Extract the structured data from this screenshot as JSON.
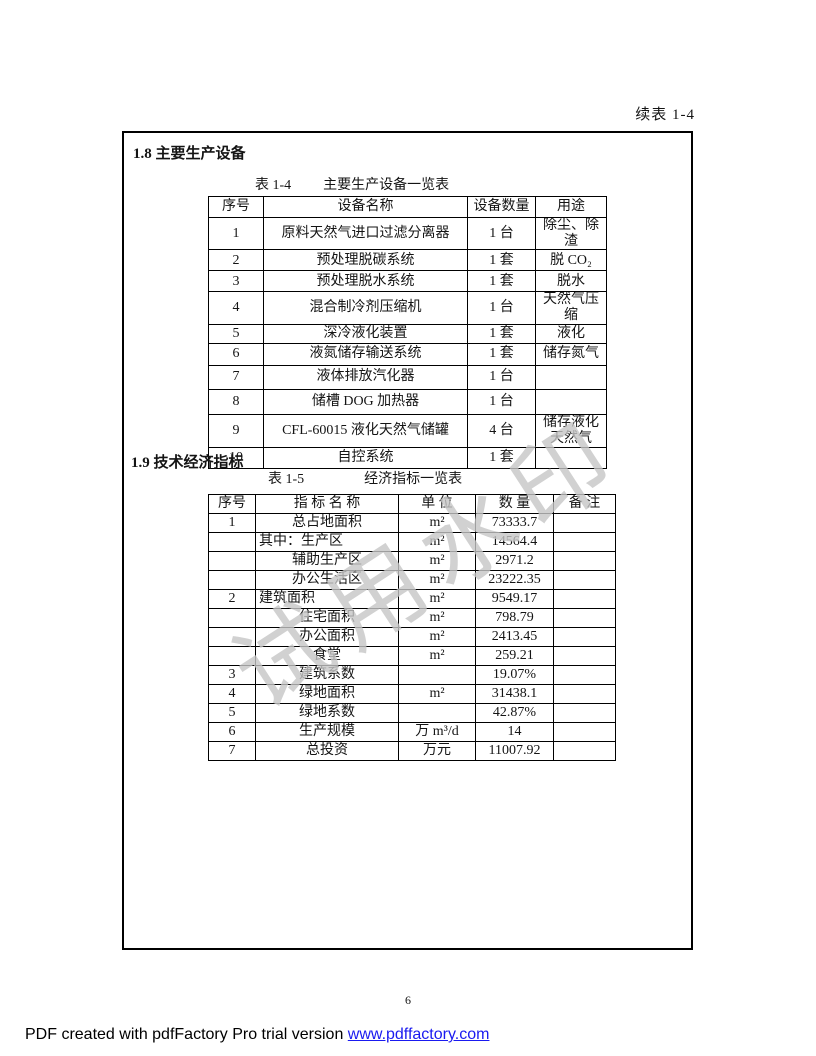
{
  "page": {
    "continuation_note": "续表 1-4",
    "watermark_text": "试用水印",
    "page_number": "6",
    "footer_text": "PDF created with pdfFactory Pro trial version ",
    "footer_link": "www.pdffactory.com",
    "colors": {
      "link_blue": "#1a1af0",
      "watermark_gray": "#c6c6c6",
      "border_black": "#000000"
    }
  },
  "equipment_section": {
    "heading": "1.8 主要生产设备",
    "caption_label": "表 1-4",
    "caption_title": "主要生产设备一览表",
    "columns": [
      "序号",
      "设备名称",
      "设备数量",
      "用途"
    ],
    "rows": [
      {
        "no": "1",
        "name": "原料天然气进口过滤分离器",
        "qty": "1 台",
        "use": "除尘、除渣"
      },
      {
        "no": "2",
        "name": "预处理脱碳系统",
        "qty": "1 套",
        "use": "脱 CO₂"
      },
      {
        "no": "3",
        "name": "预处理脱水系统",
        "qty": "1 套",
        "use": "脱水"
      },
      {
        "no": "4",
        "name": "混合制冷剂压缩机",
        "qty": "1 台",
        "use": "天然气压缩"
      },
      {
        "no": "5",
        "name": "深冷液化装置",
        "qty": "1 套",
        "use": "液化"
      },
      {
        "no": "6",
        "name": "液氮储存输送系统",
        "qty": "1 套",
        "use": "储存氮气"
      },
      {
        "no": "7",
        "name": "液体排放汽化器",
        "qty": "1 台",
        "use": ""
      },
      {
        "no": "8",
        "name": "储槽 DOG 加热器",
        "qty": "1 台",
        "use": ""
      },
      {
        "no": "9",
        "name": "CFL-60015 液化天然气储罐",
        "qty": "4 台",
        "use": "储存液化天然气"
      },
      {
        "no": "10",
        "name": "自控系统",
        "qty": "1 套",
        "use": ""
      }
    ]
  },
  "economic_section": {
    "heading": "1.9 技术经济指标",
    "caption_label": "表 1-5",
    "caption_title": "经济指标一览表",
    "columns": [
      "序号",
      "指 标 名 称",
      "单 位",
      "数 量",
      "备 注"
    ],
    "rows": [
      {
        "no": "1",
        "name": "总占地面积",
        "unit": "m²",
        "qty": "73333.7",
        "note": "",
        "align": "center"
      },
      {
        "no": "",
        "name": "其中：生产区",
        "unit": "m²",
        "qty": "14564.4",
        "note": "",
        "align": "left"
      },
      {
        "no": "",
        "name": "辅助生产区",
        "unit": "m²",
        "qty": "2971.2",
        "note": "",
        "align": "center"
      },
      {
        "no": "",
        "name": "办公生活区",
        "unit": "m²",
        "qty": "23222.35",
        "note": "",
        "align": "center"
      },
      {
        "no": "2",
        "name": "建筑面积",
        "unit": "m²",
        "qty": "9549.17",
        "note": "",
        "align": "left"
      },
      {
        "no": "",
        "name": "住宅面积",
        "unit": "m²",
        "qty": "798.79",
        "note": "",
        "align": "center"
      },
      {
        "no": "",
        "name": "办公面积",
        "unit": "m²",
        "qty": "2413.45",
        "note": "",
        "align": "center"
      },
      {
        "no": "",
        "name": "食堂",
        "unit": "m²",
        "qty": "259.21",
        "note": "",
        "align": "center"
      },
      {
        "no": "3",
        "name": "建筑系数",
        "unit": "",
        "qty": "19.07%",
        "note": "",
        "align": "center"
      },
      {
        "no": "4",
        "name": "绿地面积",
        "unit": "m²",
        "qty": "31438.1",
        "note": "",
        "align": "center"
      },
      {
        "no": "5",
        "name": "绿地系数",
        "unit": "",
        "qty": "42.87%",
        "note": "",
        "align": "center"
      },
      {
        "no": "6",
        "name": "生产规模",
        "unit": "万 m³/d",
        "qty": "14",
        "note": "",
        "align": "center"
      },
      {
        "no": "7",
        "name": "总投资",
        "unit": "万元",
        "qty": "11007.92",
        "note": "",
        "align": "center"
      }
    ]
  }
}
